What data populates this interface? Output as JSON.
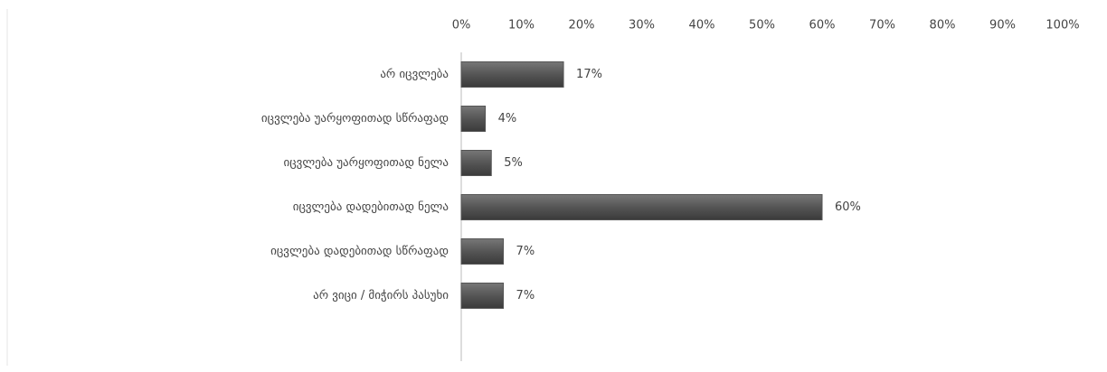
{
  "chart_data": {
    "type": "bar",
    "orientation": "horizontal",
    "categories": [
      "არ იცვლება",
      "იცვლება უარყოფითად სწრაფად",
      "იცვლება უარყოფითად ნელა",
      "იცვლება დადებითად ნელა",
      "იცვლება დადებითად სწრაფად",
      "არ ვიცი / მიჭირს პასუხი"
    ],
    "values": [
      17,
      4,
      5,
      60,
      7,
      7
    ],
    "value_labels": [
      "17%",
      "4%",
      "5%",
      "60%",
      "7%",
      "7%"
    ],
    "color": "#555555",
    "xlim": [
      0,
      100
    ],
    "xticks": [
      {
        "value": 0,
        "label": "0%"
      },
      {
        "value": 10,
        "label": "10%"
      },
      {
        "value": 20,
        "label": "20%"
      },
      {
        "value": 30,
        "label": "30%"
      },
      {
        "value": 40,
        "label": "40%"
      },
      {
        "value": 50,
        "label": "50%"
      },
      {
        "value": 60,
        "label": "60%"
      },
      {
        "value": 70,
        "label": "70%"
      },
      {
        "value": 80,
        "label": "80%"
      },
      {
        "value": 90,
        "label": "90%"
      },
      {
        "value": 100,
        "label": "100%"
      }
    ],
    "grid": false
  }
}
